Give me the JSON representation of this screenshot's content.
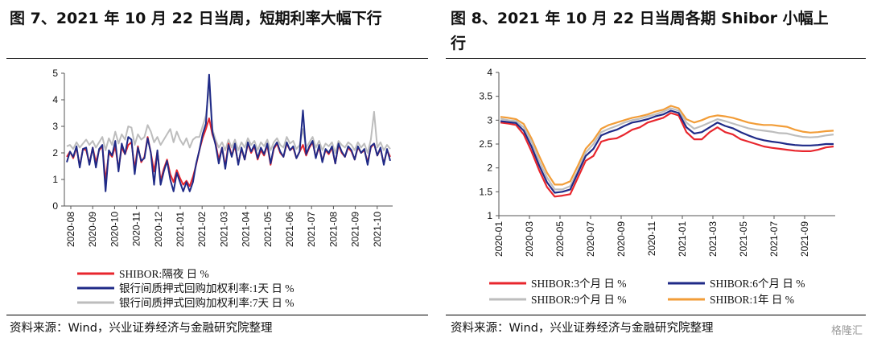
{
  "left": {
    "title": "图 7、2021 年 10 月 22 日当周，短期利率大幅下行",
    "source": "资料来源：Wind，兴业证券经济与金融研究院整理",
    "chart_data": {
      "type": "line",
      "ylim": [
        0,
        5
      ],
      "yticks": [
        "0",
        "1",
        "2",
        "3",
        "4",
        "5"
      ],
      "xticks": [
        "2020-08",
        "2020-09",
        "2020-10",
        "2020-11",
        "2020-12",
        "2021-01",
        "2021-02",
        "2021-03",
        "2021-04",
        "2021-05",
        "2021-06",
        "2021-07",
        "2021-08",
        "2021-09",
        "2021-10"
      ],
      "grid": false,
      "legend_position": "bottom",
      "series": [
        {
          "name": "SHIBOR:隔夜 日 %",
          "color": "#e8262d",
          "values": [
            1.85,
            2.05,
            1.8,
            2.2,
            1.5,
            2.15,
            2.1,
            1.6,
            2.2,
            1.65,
            2.1,
            2.25,
            0.95,
            2.0,
            1.85,
            2.25,
            1.4,
            2.2,
            1.95,
            2.3,
            2.4,
            1.4,
            2.25,
            1.65,
            1.85,
            2.6,
            2.0,
            1.3,
            2.05,
            0.95,
            1.4,
            1.75,
            1.2,
            0.9,
            1.35,
            1.05,
            0.8,
            0.95,
            0.75,
            1.1,
            1.55,
            2.1,
            2.55,
            2.9,
            3.3,
            2.7,
            2.35,
            1.75,
            2.2,
            1.5,
            2.35,
            1.9,
            2.25,
            1.6,
            2.15,
            1.75,
            2.35,
            2.0,
            2.25,
            1.75,
            2.1,
            1.9,
            2.3,
            1.55,
            2.15,
            2.35,
            2.0,
            1.85,
            2.35,
            2.1,
            2.2,
            1.8,
            2.05,
            2.3,
            1.9,
            2.2,
            2.4,
            1.85,
            2.2,
            1.7,
            2.1,
            1.95,
            2.2,
            1.6,
            2.3,
            2.0,
            1.85,
            2.2,
            2.05,
            1.75,
            2.2,
            2.0,
            2.1,
            1.65,
            2.2,
            2.35,
            1.9,
            2.15,
            1.6,
            2.1,
            1.85
          ]
        },
        {
          "name": "银行间质押式回购加权利率:1天 日 %",
          "color": "#1f2a87",
          "values": [
            1.65,
            2.05,
            1.85,
            2.25,
            1.45,
            2.15,
            2.2,
            1.55,
            2.2,
            1.45,
            2.15,
            2.3,
            0.55,
            2.1,
            1.9,
            2.45,
            1.3,
            2.35,
            1.95,
            2.6,
            2.5,
            1.2,
            2.2,
            1.7,
            1.8,
            2.55,
            2.0,
            0.8,
            2.1,
            0.8,
            1.3,
            1.7,
            1.0,
            0.55,
            1.25,
            0.9,
            0.55,
            0.9,
            0.55,
            0.9,
            1.6,
            2.1,
            2.7,
            3.1,
            4.95,
            2.8,
            2.3,
            1.6,
            2.2,
            1.4,
            2.3,
            1.85,
            2.35,
            1.55,
            2.2,
            1.75,
            2.4,
            2.05,
            2.3,
            1.8,
            2.2,
            1.95,
            2.35,
            1.6,
            2.2,
            2.4,
            2.05,
            1.85,
            2.4,
            2.1,
            2.25,
            1.8,
            2.05,
            3.6,
            1.95,
            2.25,
            2.45,
            1.8,
            2.3,
            1.65,
            2.15,
            2.0,
            2.25,
            1.6,
            2.35,
            2.05,
            1.85,
            2.25,
            2.1,
            1.75,
            2.25,
            2.0,
            2.15,
            1.55,
            2.25,
            2.35,
            1.9,
            2.2,
            1.55,
            2.15,
            1.7
          ]
        },
        {
          "name": "银行间质押式回购加权利率:7天 日 %",
          "color": "#bdbdbd",
          "values": [
            2.25,
            2.3,
            2.15,
            2.4,
            2.2,
            2.35,
            2.5,
            2.3,
            2.45,
            2.2,
            2.4,
            2.6,
            2.1,
            2.55,
            2.3,
            2.8,
            2.35,
            2.7,
            2.5,
            3.0,
            2.95,
            2.3,
            2.7,
            2.5,
            2.6,
            3.05,
            2.8,
            2.4,
            2.6,
            2.3,
            2.5,
            2.7,
            2.9,
            2.4,
            2.8,
            2.5,
            2.3,
            2.55,
            2.2,
            2.5,
            2.6,
            2.6,
            3.0,
            3.4,
            4.5,
            2.9,
            2.5,
            2.2,
            2.4,
            2.1,
            2.5,
            2.2,
            2.5,
            2.1,
            2.4,
            2.2,
            2.55,
            2.3,
            2.45,
            2.1,
            2.4,
            2.25,
            2.5,
            2.1,
            2.4,
            2.55,
            2.3,
            2.2,
            2.6,
            2.35,
            2.45,
            2.15,
            2.3,
            2.9,
            2.2,
            2.4,
            2.6,
            2.2,
            2.45,
            2.1,
            2.35,
            2.25,
            2.4,
            2.0,
            2.45,
            2.3,
            2.2,
            2.4,
            2.3,
            2.1,
            2.4,
            2.2,
            2.35,
            2.0,
            2.5,
            3.55,
            2.2,
            2.4,
            2.1,
            2.3,
            2.15
          ]
        }
      ]
    }
  },
  "right": {
    "title_line1": "图 8、2021 年 10 月 22 日当周各期 Shibor 小幅上",
    "title_line2": "行",
    "source": "资料来源：Wind，兴业证券经济与金融研究院整理",
    "watermark": "格隆汇",
    "chart_data": {
      "type": "line",
      "ylim": [
        1,
        4
      ],
      "yticks": [
        "1",
        "1.5",
        "2",
        "2.5",
        "3",
        "3.5",
        "4"
      ],
      "xticks": [
        "2020-01",
        "2020-03",
        "2020-05",
        "2020-07",
        "2020-09",
        "2020-11",
        "2021-01",
        "2021-03",
        "2021-05",
        "2021-07",
        "2021-09"
      ],
      "grid": false,
      "legend_position": "bottom",
      "series": [
        {
          "name": "SHIBOR:3个月 日 %",
          "color": "#e8262d",
          "values": [
            2.95,
            2.93,
            2.9,
            2.7,
            2.35,
            1.95,
            1.6,
            1.4,
            1.42,
            1.45,
            1.8,
            2.15,
            2.25,
            2.55,
            2.6,
            2.62,
            2.7,
            2.8,
            2.85,
            2.95,
            3.0,
            3.05,
            3.15,
            3.1,
            2.75,
            2.6,
            2.6,
            2.75,
            2.85,
            2.75,
            2.7,
            2.6,
            2.55,
            2.5,
            2.45,
            2.42,
            2.4,
            2.38,
            2.36,
            2.35,
            2.35,
            2.38,
            2.43,
            2.45
          ]
        },
        {
          "name": "SHIBOR:6个月 日 %",
          "color": "#1f2a87",
          "values": [
            2.98,
            2.96,
            2.94,
            2.78,
            2.45,
            2.05,
            1.7,
            1.48,
            1.5,
            1.55,
            1.9,
            2.25,
            2.4,
            2.68,
            2.75,
            2.8,
            2.88,
            2.95,
            2.98,
            3.02,
            3.08,
            3.12,
            3.2,
            3.15,
            2.85,
            2.72,
            2.75,
            2.85,
            2.95,
            2.88,
            2.83,
            2.75,
            2.68,
            2.62,
            2.58,
            2.55,
            2.53,
            2.5,
            2.48,
            2.47,
            2.47,
            2.48,
            2.5,
            2.5
          ]
        },
        {
          "name": "SHIBOR:9个月 日 %",
          "color": "#bdbdbd",
          "values": [
            3.03,
            3.0,
            2.98,
            2.85,
            2.55,
            2.15,
            1.8,
            1.55,
            1.55,
            1.62,
            1.95,
            2.32,
            2.5,
            2.75,
            2.82,
            2.88,
            2.95,
            3.0,
            3.03,
            3.08,
            3.12,
            3.18,
            3.25,
            3.2,
            2.95,
            2.82,
            2.88,
            2.95,
            3.02,
            2.98,
            2.93,
            2.88,
            2.83,
            2.8,
            2.78,
            2.76,
            2.73,
            2.72,
            2.68,
            2.65,
            2.64,
            2.65,
            2.68,
            2.7
          ]
        },
        {
          "name": "SHIBOR:1年 日 %",
          "color": "#f29d38",
          "values": [
            3.07,
            3.05,
            3.02,
            2.92,
            2.62,
            2.25,
            1.9,
            1.65,
            1.65,
            1.72,
            2.05,
            2.4,
            2.58,
            2.82,
            2.9,
            2.95,
            3.0,
            3.05,
            3.08,
            3.12,
            3.18,
            3.22,
            3.3,
            3.25,
            3.02,
            2.95,
            3.0,
            3.07,
            3.1,
            3.08,
            3.05,
            3.0,
            2.95,
            2.92,
            2.9,
            2.9,
            2.88,
            2.86,
            2.8,
            2.76,
            2.74,
            2.75,
            2.77,
            2.78
          ]
        }
      ]
    }
  }
}
